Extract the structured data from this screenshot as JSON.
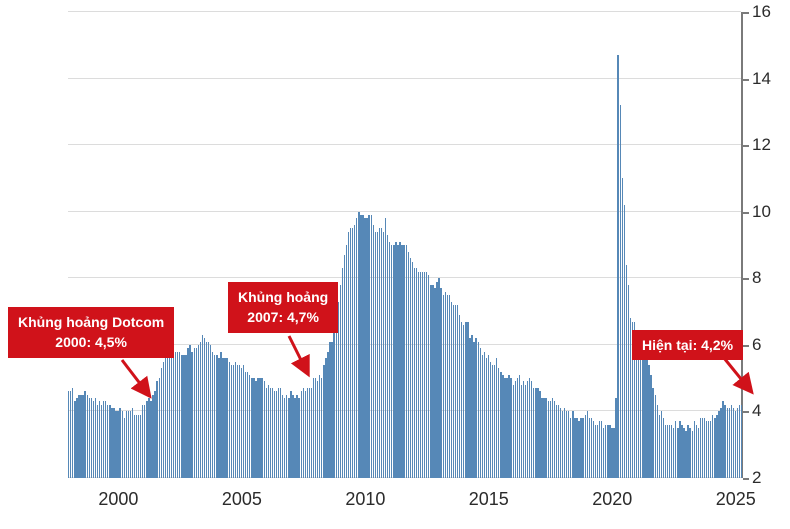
{
  "colors": {
    "bar": "#5688b7",
    "grid": "#dcdcdc",
    "axis": "#7a7a7a",
    "annotation_bg": "#d0121a",
    "arrow": "#d0121a",
    "tick_text": "#2b2b2b"
  },
  "chart_data": {
    "type": "bar",
    "title": "",
    "xlabel": "",
    "ylabel": "",
    "ylim": [
      2,
      16
    ],
    "y_ticks": [
      2,
      4,
      6,
      8,
      10,
      12,
      14,
      16
    ],
    "x_ticks": [
      2000,
      2005,
      2010,
      2015,
      2020,
      2025
    ],
    "x_start_year": 1998,
    "frequency": "monthly",
    "grid": true,
    "legend": "none",
    "values": [
      4.6,
      4.6,
      4.7,
      4.3,
      4.4,
      4.5,
      4.5,
      4.5,
      4.6,
      4.5,
      4.4,
      4.4,
      4.3,
      4.4,
      4.2,
      4.3,
      4.2,
      4.3,
      4.3,
      4.2,
      4.2,
      4.1,
      4.1,
      4.0,
      4.0,
      4.1,
      4.0,
      3.8,
      4.0,
      4.0,
      4.0,
      4.1,
      3.9,
      3.9,
      3.9,
      3.9,
      4.2,
      4.2,
      4.3,
      4.4,
      4.3,
      4.5,
      4.6,
      4.9,
      5.0,
      5.3,
      5.5,
      5.7,
      5.7,
      5.7,
      5.7,
      5.9,
      5.8,
      5.8,
      5.8,
      5.7,
      5.7,
      5.7,
      5.9,
      6.0,
      5.8,
      5.9,
      5.9,
      6.0,
      6.1,
      6.3,
      6.2,
      6.1,
      6.1,
      6.0,
      5.8,
      5.7,
      5.7,
      5.6,
      5.8,
      5.6,
      5.6,
      5.6,
      5.5,
      5.4,
      5.4,
      5.5,
      5.4,
      5.4,
      5.3,
      5.4,
      5.2,
      5.2,
      5.1,
      5.0,
      5.0,
      4.9,
      5.0,
      5.0,
      5.0,
      4.9,
      4.7,
      4.8,
      4.7,
      4.7,
      4.6,
      4.6,
      4.7,
      4.7,
      4.5,
      4.4,
      4.5,
      4.4,
      4.6,
      4.5,
      4.4,
      4.5,
      4.4,
      4.6,
      4.7,
      4.6,
      4.7,
      4.7,
      4.7,
      5.0,
      5.0,
      4.9,
      5.1,
      5.0,
      5.4,
      5.6,
      5.8,
      6.1,
      6.1,
      6.5,
      6.8,
      7.3,
      7.8,
      8.3,
      8.7,
      9.0,
      9.4,
      9.5,
      9.5,
      9.6,
      9.8,
      10.0,
      9.9,
      9.9,
      9.8,
      9.8,
      9.9,
      9.9,
      9.6,
      9.4,
      9.4,
      9.5,
      9.5,
      9.4,
      9.8,
      9.3,
      9.1,
      9.0,
      9.0,
      9.1,
      9.0,
      9.1,
      9.0,
      9.0,
      9.0,
      8.8,
      8.6,
      8.5,
      8.3,
      8.3,
      8.2,
      8.2,
      8.2,
      8.2,
      8.2,
      8.1,
      7.8,
      7.8,
      7.7,
      7.9,
      8.0,
      7.7,
      7.5,
      7.6,
      7.5,
      7.5,
      7.3,
      7.2,
      7.2,
      7.2,
      6.9,
      6.7,
      6.6,
      6.7,
      6.7,
      6.2,
      6.3,
      6.1,
      6.2,
      6.1,
      5.9,
      5.7,
      5.8,
      5.6,
      5.7,
      5.5,
      5.4,
      5.4,
      5.6,
      5.3,
      5.2,
      5.1,
      5.0,
      5.0,
      5.1,
      5.0,
      4.8,
      4.9,
      5.0,
      5.1,
      4.8,
      4.9,
      4.8,
      4.9,
      5.0,
      4.9,
      4.7,
      4.7,
      4.7,
      4.6,
      4.4,
      4.4,
      4.4,
      4.3,
      4.3,
      4.4,
      4.3,
      4.2,
      4.2,
      4.1,
      4.0,
      4.1,
      4.0,
      4.0,
      3.8,
      4.0,
      3.8,
      3.8,
      3.7,
      3.8,
      3.8,
      3.9,
      4.0,
      3.8,
      3.8,
      3.7,
      3.6,
      3.6,
      3.7,
      3.7,
      3.5,
      3.6,
      3.6,
      3.6,
      3.5,
      3.5,
      4.4,
      14.7,
      13.2,
      11.0,
      10.2,
      8.4,
      7.8,
      6.8,
      6.7,
      6.7,
      6.4,
      6.2,
      6.1,
      6.1,
      5.8,
      5.9,
      5.4,
      5.1,
      4.7,
      4.5,
      4.2,
      3.9,
      4.0,
      3.8,
      3.6,
      3.6,
      3.6,
      3.6,
      3.5,
      3.7,
      3.5,
      3.7,
      3.6,
      3.5,
      3.4,
      3.6,
      3.5,
      3.4,
      3.7,
      3.6,
      3.5,
      3.8,
      3.8,
      3.8,
      3.7,
      3.7,
      3.7,
      3.9,
      3.8,
      3.9,
      4.0,
      4.1,
      4.3,
      4.2,
      4.1,
      4.1,
      4.2,
      4.1,
      4.0,
      4.1,
      4.2,
      4.2
    ],
    "annotations": [
      {
        "line1": "Khủng hoảng Dotcom",
        "line2": "2000: 4,5%",
        "value_pointed": 4.5
      },
      {
        "line1": "Khủng hoảng",
        "line2": "2007: 4,7%",
        "value_pointed": 4.7
      },
      {
        "line1": "Hiện tại: 4,2%",
        "value_pointed": 4.2
      }
    ]
  }
}
